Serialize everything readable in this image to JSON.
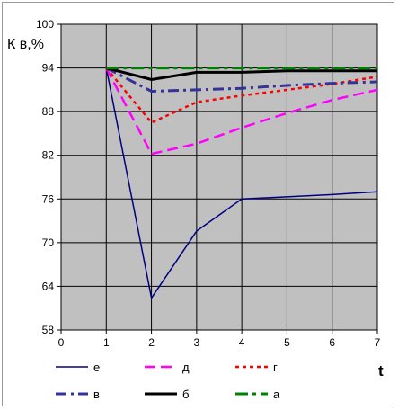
{
  "chart_data": {
    "type": "line",
    "title": "",
    "xlabel": "t",
    "ylabel": "К в,%",
    "xlim": [
      0,
      7
    ],
    "ylim": [
      58,
      100
    ],
    "xticks": [
      0,
      1,
      2,
      3,
      4,
      5,
      6,
      7
    ],
    "yticks": [
      58,
      64,
      70,
      76,
      82,
      88,
      94,
      100
    ],
    "grid": "horizontal",
    "background": "#c0c0c0",
    "legend_position": "bottom",
    "series": [
      {
        "name": "е",
        "color": "#000080",
        "dash": "solid",
        "x": [
          1,
          2,
          3,
          4,
          5,
          6,
          7
        ],
        "values": [
          94,
          62.4,
          71.6,
          76,
          76.3,
          76.6,
          77
        ]
      },
      {
        "name": "д",
        "color": "#ff00ff",
        "dash": "longdash",
        "x": [
          1,
          2,
          3,
          4,
          5,
          6,
          7
        ],
        "values": [
          94,
          82.2,
          83.6,
          85.8,
          87.8,
          89.6,
          91
        ]
      },
      {
        "name": "г",
        "color": "#ff0000",
        "dash": "dot",
        "x": [
          1,
          2,
          3,
          4,
          5,
          6,
          7
        ],
        "values": [
          94,
          86.5,
          89.3,
          90.2,
          91,
          91.8,
          92.8
        ]
      },
      {
        "name": "в",
        "color": "#333399",
        "dash": "dashdot",
        "x": [
          1,
          2,
          3,
          4,
          5,
          6,
          7
        ],
        "values": [
          94,
          90.8,
          91,
          91.2,
          91.6,
          91.9,
          92.1
        ]
      },
      {
        "name": "б",
        "color": "#000000",
        "dash": "solid-thick",
        "x": [
          1,
          2,
          3,
          4,
          5,
          6,
          7
        ],
        "values": [
          94,
          92.4,
          93.4,
          93.4,
          93.6,
          93.6,
          93.6
        ]
      },
      {
        "name": "а",
        "color": "#008000",
        "dash": "dashdot-thick",
        "x": [
          1,
          2,
          3,
          4,
          5,
          6,
          7
        ],
        "values": [
          94,
          94,
          94,
          94,
          94,
          94,
          94
        ]
      }
    ]
  }
}
